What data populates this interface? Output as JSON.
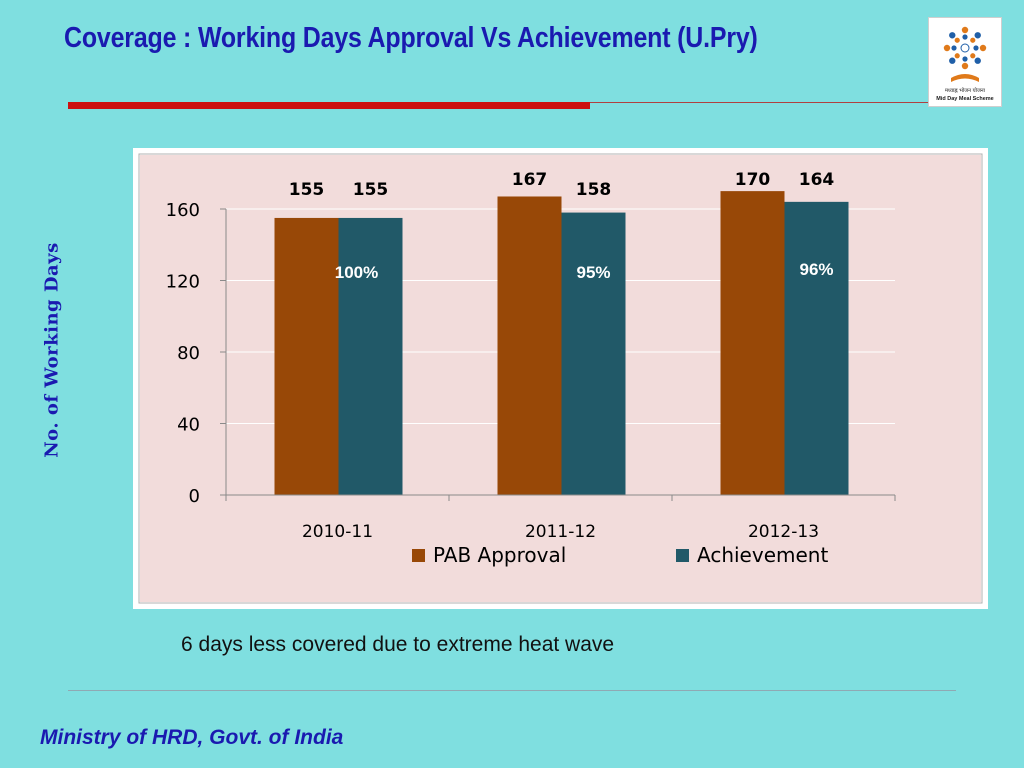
{
  "slide": {
    "title": "Coverage : Working Days Approval Vs Achievement (U.Pry)",
    "side_axis_label": "No. of Working Days",
    "note": "6 days less covered due to extreme heat wave",
    "footer": "Ministry of HRD, Govt. of India",
    "logo": {
      "caption_hindi": "मध्याह्न भोजन योजना",
      "caption_english": "Mid Day Meal Scheme"
    }
  },
  "chart_data": {
    "type": "bar",
    "categories": [
      "2010-11",
      "2011-12",
      "2012-13"
    ],
    "series": [
      {
        "name": "PAB Approval",
        "values": [
          155,
          167,
          170
        ],
        "color": "#984807"
      },
      {
        "name": "Achievement",
        "values": [
          155,
          158,
          164
        ],
        "color": "#215968"
      }
    ],
    "percent_labels": [
      "100%",
      "95%",
      "96%"
    ],
    "ylim": [
      0,
      180
    ],
    "yticks": [
      0,
      40,
      80,
      120,
      160
    ],
    "grid": true,
    "legend": "bottom",
    "plot_background": "#f2dcdb"
  }
}
